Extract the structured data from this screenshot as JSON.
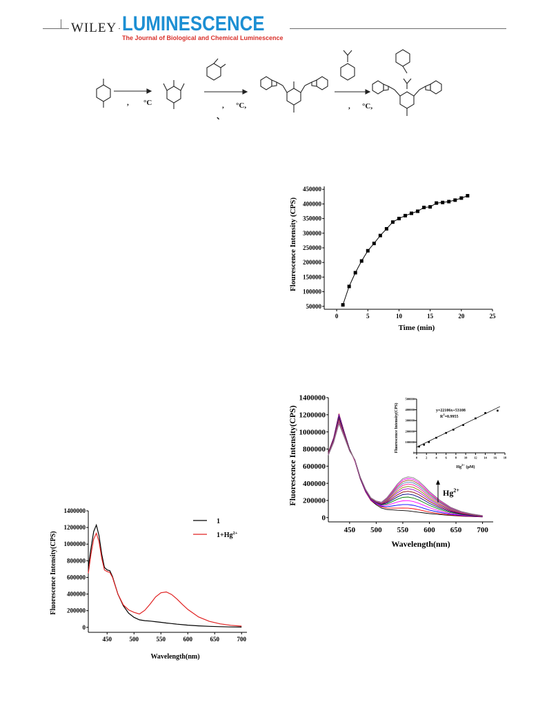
{
  "header": {
    "publisher": "WILEY",
    "journal_name": "LUMINESCENCE",
    "journal_subtitle": "The Journal of Biological and Chemical Luminescence"
  },
  "scheme": {
    "step1_labels": [
      ",",
      "°C"
    ],
    "step2_labels": [
      ",",
      "°C,",
      "、"
    ],
    "step3_labels": [
      ",",
      "°C,"
    ]
  },
  "chart_data": [
    {
      "type": "line",
      "title": "",
      "xlabel": "Time (min)",
      "ylabel": "Flourescence Intensity (CPS)",
      "xlim": [
        -2,
        25
      ],
      "ylim": [
        40000,
        460000
      ],
      "xticks": [
        "0",
        "5",
        "10",
        "15",
        "20",
        "25"
      ],
      "yticks": [
        "50000",
        "100000",
        "150000",
        "200000",
        "250000",
        "300000",
        "350000",
        "400000",
        "450000"
      ],
      "x": [
        1,
        2,
        3,
        4,
        5,
        6,
        7,
        8,
        9,
        10,
        11,
        12,
        13,
        14,
        15,
        16,
        17,
        18,
        19,
        20,
        21
      ],
      "y": [
        55000,
        118000,
        165000,
        205000,
        240000,
        265000,
        292000,
        315000,
        338000,
        350000,
        360000,
        368000,
        375000,
        388000,
        390000,
        403000,
        405000,
        408000,
        413000,
        420000,
        428000
      ],
      "marker": "square",
      "grid": false
    },
    {
      "type": "line",
      "title": "",
      "xlabel": "Wavelength(nm)",
      "ylabel": "Fluorescence Intensity(CPS)",
      "xlim": [
        410,
        720
      ],
      "ylim": [
        -50000,
        1400000
      ],
      "xticks": [
        "450",
        "500",
        "550",
        "600",
        "650",
        "700"
      ],
      "yticks": [
        "0",
        "200000",
        "400000",
        "600000",
        "800000",
        "1000000",
        "1200000",
        "1400000"
      ],
      "x": [
        410,
        420,
        430,
        440,
        450,
        460,
        470,
        480,
        490,
        500,
        510,
        520,
        530,
        540,
        550,
        560,
        570,
        580,
        590,
        600,
        620,
        640,
        660,
        680,
        700
      ],
      "series": [
        {
          "color": "#000000",
          "values": [
            760000,
            930000,
            1210000,
            1000000,
            800000,
            660000,
            450000,
            300000,
            200000,
            150000,
            110000,
            95000,
            90000,
            85000,
            82000,
            78000,
            70000,
            62000,
            55000,
            47000,
            35000,
            25000,
            17000,
            12000,
            8000
          ]
        },
        {
          "color": "#ff0000",
          "values": [
            760000,
            930000,
            1205000,
            995000,
            800000,
            660000,
            450000,
            300000,
            200000,
            160000,
            125000,
            112000,
            110000,
            110000,
            112000,
            110000,
            103000,
            92000,
            78000,
            64000,
            45000,
            30000,
            20000,
            14000,
            9000
          ]
        },
        {
          "color": "#0000ff",
          "values": [
            755000,
            925000,
            1195000,
            990000,
            800000,
            665000,
            455000,
            305000,
            205000,
            165000,
            132000,
            128000,
            135000,
            145000,
            152000,
            152000,
            143000,
            127000,
            108000,
            88000,
            60000,
            38000,
            25000,
            17000,
            11000
          ]
        },
        {
          "color": "#ff00ff",
          "values": [
            750000,
            920000,
            1185000,
            985000,
            795000,
            665000,
            460000,
            310000,
            210000,
            170000,
            140000,
            145000,
            162000,
            182000,
            196000,
            198000,
            187000,
            167000,
            142000,
            115000,
            76000,
            47000,
            30000,
            20000,
            12000
          ]
        },
        {
          "color": "#008000",
          "values": [
            750000,
            915000,
            1175000,
            980000,
            795000,
            670000,
            460000,
            315000,
            215000,
            175000,
            148000,
            158000,
            185000,
            215000,
            236000,
            240000,
            228000,
            205000,
            175000,
            143000,
            94000,
            57000,
            36000,
            23000,
            14000
          ]
        },
        {
          "color": "#000080",
          "values": [
            745000,
            910000,
            1165000,
            975000,
            790000,
            670000,
            465000,
            318000,
            218000,
            178000,
            153000,
            170000,
            205000,
            242000,
            268000,
            275000,
            263000,
            238000,
            204000,
            167000,
            110000,
            67000,
            41000,
            26000,
            15000
          ]
        },
        {
          "color": "#8b0000",
          "values": [
            745000,
            905000,
            1155000,
            970000,
            790000,
            672000,
            465000,
            320000,
            220000,
            180000,
            158000,
            180000,
            222000,
            266000,
            298000,
            307000,
            295000,
            268000,
            230000,
            189000,
            124000,
            75000,
            46000,
            29000,
            16000
          ]
        },
        {
          "color": "#9400d3",
          "values": [
            740000,
            900000,
            1145000,
            965000,
            785000,
            672000,
            468000,
            322000,
            222000,
            183000,
            162000,
            190000,
            238000,
            290000,
            326000,
            338000,
            325000,
            296000,
            255000,
            210000,
            138000,
            84000,
            51000,
            32000,
            18000
          ]
        },
        {
          "color": "#808000",
          "values": [
            740000,
            895000,
            1135000,
            960000,
            785000,
            674000,
            470000,
            325000,
            225000,
            185000,
            166000,
            198000,
            252000,
            310000,
            350000,
            364000,
            352000,
            321000,
            277000,
            228000,
            150000,
            91000,
            55000,
            34000,
            19000
          ]
        },
        {
          "color": "#ff1493",
          "values": [
            735000,
            890000,
            1125000,
            955000,
            780000,
            674000,
            470000,
            326000,
            227000,
            188000,
            170000,
            206000,
            266000,
            330000,
            375000,
            392000,
            380000,
            347000,
            300000,
            247000,
            163000,
            98000,
            59000,
            36000,
            20000
          ]
        },
        {
          "color": "#4682b4",
          "values": [
            735000,
            885000,
            1115000,
            950000,
            780000,
            675000,
            472000,
            328000,
            229000,
            190000,
            173000,
            213000,
            278000,
            348000,
            397000,
            416000,
            404000,
            370000,
            320000,
            264000,
            174000,
            105000,
            63000,
            38000,
            21000
          ]
        },
        {
          "color": "#a0522d",
          "values": [
            730000,
            880000,
            1108000,
            945000,
            778000,
            676000,
            473000,
            330000,
            230000,
            192000,
            176000,
            220000,
            290000,
            365000,
            418000,
            438000,
            426000,
            391000,
            338000,
            279000,
            184000,
            111000,
            66000,
            40000,
            22000
          ]
        },
        {
          "color": "#ff00ff",
          "values": [
            730000,
            878000,
            1100000,
            940000,
            776000,
            676000,
            474000,
            331000,
            231000,
            193000,
            178000,
            226000,
            300000,
            380000,
            437000,
            458000,
            446000,
            410000,
            355000,
            293000,
            193000,
            116000,
            69000,
            42000,
            23000
          ]
        },
        {
          "color": "#808080",
          "values": [
            728000,
            875000,
            1095000,
            938000,
            775000,
            677000,
            475000,
            332000,
            232000,
            194000,
            180000,
            232000,
            310000,
            394000,
            454000,
            476000,
            464000,
            427000,
            370000,
            306000,
            201000,
            121000,
            72000,
            43000,
            24000
          ]
        }
      ],
      "annotation": "Hg",
      "annotation_sup": "2+",
      "inset": {
        "type": "scatter",
        "xlabel": "Hg",
        "xlabel_sup": "2+",
        "xlabel_unit": " (μM)",
        "ylabel": "Fluorescence Intensity(CPS)",
        "xticks": [
          "0",
          "2",
          "4",
          "6",
          "8",
          "10",
          "12",
          "14",
          "16",
          "18"
        ],
        "yticks": [
          "0",
          "100000",
          "200000",
          "300000",
          "400000",
          "500000"
        ],
        "xlim": [
          0,
          18
        ],
        "ylim": [
          0,
          500000
        ],
        "x": [
          0.5,
          1.5,
          2.5,
          4,
          6,
          7.5,
          9.5,
          12,
          14,
          16.5
        ],
        "y": [
          58000,
          75000,
          100000,
          140000,
          185000,
          215000,
          258000,
          320000,
          370000,
          392000
        ],
        "fit_line": [
          [
            0,
            53108
          ],
          [
            17,
            429878
          ]
        ],
        "equation": "y=22106x+53108",
        "r2_label": "R",
        "r2_sup": "2",
        "r2_value": "=0.9955"
      }
    },
    {
      "type": "line",
      "title": "",
      "xlabel": "Wavelength(nm)",
      "ylabel": "Fluorescence Intensity(CPS)",
      "xlim": [
        415,
        710
      ],
      "ylim": [
        -60000,
        1400000
      ],
      "xticks": [
        "450",
        "500",
        "550",
        "600",
        "650",
        "700"
      ],
      "yticks": [
        "0",
        "200000",
        "400000",
        "600000",
        "800000",
        "1000000",
        "1200000",
        "1400000"
      ],
      "x": [
        415,
        420,
        425,
        430,
        435,
        440,
        445,
        450,
        455,
        460,
        470,
        480,
        490,
        500,
        510,
        520,
        530,
        540,
        550,
        560,
        570,
        580,
        590,
        600,
        620,
        640,
        660,
        680,
        700
      ],
      "series": [
        {
          "name": "1",
          "color": "#000000",
          "values": [
            720000,
            950000,
            1150000,
            1230000,
            1100000,
            880000,
            720000,
            690000,
            680000,
            610000,
            400000,
            260000,
            170000,
            120000,
            90000,
            80000,
            75000,
            68000,
            60000,
            52000,
            45000,
            38000,
            32000,
            26000,
            18000,
            12000,
            8000,
            5000,
            3000
          ]
        },
        {
          "name": "1+Hg",
          "name_sup": "2+",
          "color": "#e02020",
          "values": [
            650000,
            880000,
            1060000,
            1130000,
            1030000,
            830000,
            690000,
            670000,
            660000,
            600000,
            400000,
            270000,
            210000,
            180000,
            160000,
            205000,
            280000,
            365000,
            415000,
            425000,
            395000,
            340000,
            275000,
            215000,
            125000,
            72000,
            42000,
            25000,
            15000
          ]
        }
      ],
      "legend": "top-right"
    }
  ]
}
